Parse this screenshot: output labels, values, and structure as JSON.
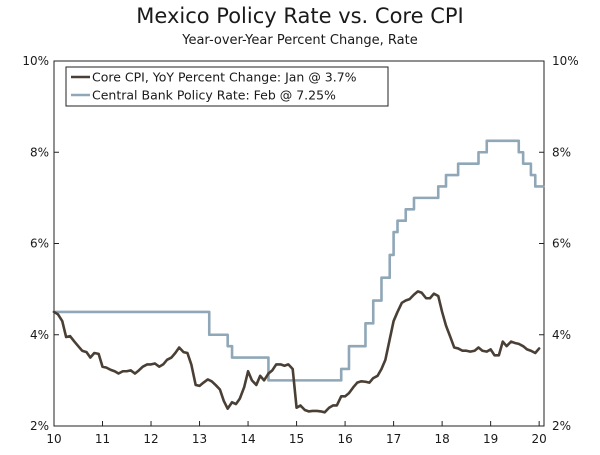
{
  "chart_data": {
    "type": "line",
    "title": "Mexico Policy Rate vs. Core CPI",
    "subtitle": "Year-over-Year Percent Change, Rate",
    "xlabel": "",
    "ylabel": "",
    "xlim": [
      2010.0,
      2020.1
    ],
    "ylim": [
      2,
      10
    ],
    "x_ticks": [
      {
        "value": 2010,
        "label": "10"
      },
      {
        "value": 2011,
        "label": "11"
      },
      {
        "value": 2012,
        "label": "12"
      },
      {
        "value": 2013,
        "label": "13"
      },
      {
        "value": 2014,
        "label": "14"
      },
      {
        "value": 2015,
        "label": "15"
      },
      {
        "value": 2016,
        "label": "16"
      },
      {
        "value": 2017,
        "label": "17"
      },
      {
        "value": 2018,
        "label": "18"
      },
      {
        "value": 2019,
        "label": "19"
      },
      {
        "value": 2020,
        "label": "20"
      }
    ],
    "y_ticks_left": [
      {
        "value": 2,
        "label": "2%"
      },
      {
        "value": 4,
        "label": "4%"
      },
      {
        "value": 6,
        "label": "6%"
      },
      {
        "value": 8,
        "label": "8%"
      },
      {
        "value": 10,
        "label": "10%"
      }
    ],
    "y_ticks_right": [
      {
        "value": 2,
        "label": "2%"
      },
      {
        "value": 4,
        "label": "4%"
      },
      {
        "value": 6,
        "label": "6%"
      },
      {
        "value": 8,
        "label": "8%"
      },
      {
        "value": 10,
        "label": "10%"
      }
    ],
    "grid": false,
    "legend_position": "top-left",
    "series": [
      {
        "name": "Core CPI, YoY Percent Change: Jan @ 3.7%",
        "color": "#4a3f35",
        "points": [
          [
            2010.0,
            4.5
          ],
          [
            2010.08,
            4.45
          ],
          [
            2010.17,
            4.3
          ],
          [
            2010.25,
            3.95
          ],
          [
            2010.33,
            3.97
          ],
          [
            2010.42,
            3.85
          ],
          [
            2010.5,
            3.75
          ],
          [
            2010.58,
            3.65
          ],
          [
            2010.67,
            3.62
          ],
          [
            2010.75,
            3.5
          ],
          [
            2010.83,
            3.6
          ],
          [
            2010.92,
            3.58
          ],
          [
            2011.0,
            3.3
          ],
          [
            2011.08,
            3.28
          ],
          [
            2011.17,
            3.23
          ],
          [
            2011.25,
            3.2
          ],
          [
            2011.33,
            3.15
          ],
          [
            2011.42,
            3.2
          ],
          [
            2011.5,
            3.2
          ],
          [
            2011.58,
            3.22
          ],
          [
            2011.67,
            3.15
          ],
          [
            2011.75,
            3.22
          ],
          [
            2011.83,
            3.3
          ],
          [
            2011.92,
            3.35
          ],
          [
            2012.0,
            3.35
          ],
          [
            2012.08,
            3.37
          ],
          [
            2012.17,
            3.3
          ],
          [
            2012.25,
            3.35
          ],
          [
            2012.33,
            3.45
          ],
          [
            2012.42,
            3.5
          ],
          [
            2012.5,
            3.6
          ],
          [
            2012.58,
            3.72
          ],
          [
            2012.67,
            3.62
          ],
          [
            2012.75,
            3.6
          ],
          [
            2012.83,
            3.35
          ],
          [
            2012.92,
            2.9
          ],
          [
            2013.0,
            2.88
          ],
          [
            2013.08,
            2.95
          ],
          [
            2013.17,
            3.02
          ],
          [
            2013.25,
            2.98
          ],
          [
            2013.33,
            2.9
          ],
          [
            2013.42,
            2.8
          ],
          [
            2013.5,
            2.55
          ],
          [
            2013.58,
            2.38
          ],
          [
            2013.67,
            2.52
          ],
          [
            2013.75,
            2.48
          ],
          [
            2013.83,
            2.6
          ],
          [
            2013.92,
            2.85
          ],
          [
            2014.0,
            3.2
          ],
          [
            2014.08,
            3.0
          ],
          [
            2014.17,
            2.9
          ],
          [
            2014.25,
            3.1
          ],
          [
            2014.33,
            3.0
          ],
          [
            2014.42,
            3.15
          ],
          [
            2014.5,
            3.22
          ],
          [
            2014.58,
            3.35
          ],
          [
            2014.67,
            3.35
          ],
          [
            2014.75,
            3.32
          ],
          [
            2014.83,
            3.35
          ],
          [
            2014.92,
            3.25
          ],
          [
            2015.0,
            2.4
          ],
          [
            2015.08,
            2.45
          ],
          [
            2015.17,
            2.35
          ],
          [
            2015.25,
            2.32
          ],
          [
            2015.33,
            2.33
          ],
          [
            2015.42,
            2.33
          ],
          [
            2015.5,
            2.32
          ],
          [
            2015.58,
            2.3
          ],
          [
            2015.67,
            2.4
          ],
          [
            2015.75,
            2.45
          ],
          [
            2015.83,
            2.45
          ],
          [
            2015.92,
            2.65
          ],
          [
            2016.0,
            2.65
          ],
          [
            2016.08,
            2.72
          ],
          [
            2016.17,
            2.85
          ],
          [
            2016.25,
            2.95
          ],
          [
            2016.33,
            2.98
          ],
          [
            2016.42,
            2.97
          ],
          [
            2016.5,
            2.95
          ],
          [
            2016.58,
            3.05
          ],
          [
            2016.67,
            3.1
          ],
          [
            2016.75,
            3.25
          ],
          [
            2016.83,
            3.45
          ],
          [
            2016.92,
            3.9
          ],
          [
            2017.0,
            4.3
          ],
          [
            2017.08,
            4.5
          ],
          [
            2017.17,
            4.7
          ],
          [
            2017.25,
            4.75
          ],
          [
            2017.33,
            4.78
          ],
          [
            2017.42,
            4.88
          ],
          [
            2017.5,
            4.95
          ],
          [
            2017.58,
            4.92
          ],
          [
            2017.67,
            4.8
          ],
          [
            2017.75,
            4.8
          ],
          [
            2017.83,
            4.9
          ],
          [
            2017.92,
            4.85
          ],
          [
            2018.0,
            4.5
          ],
          [
            2018.08,
            4.2
          ],
          [
            2018.17,
            3.95
          ],
          [
            2018.25,
            3.72
          ],
          [
            2018.33,
            3.7
          ],
          [
            2018.42,
            3.65
          ],
          [
            2018.5,
            3.65
          ],
          [
            2018.58,
            3.63
          ],
          [
            2018.67,
            3.65
          ],
          [
            2018.75,
            3.72
          ],
          [
            2018.83,
            3.65
          ],
          [
            2018.92,
            3.63
          ],
          [
            2019.0,
            3.68
          ],
          [
            2019.08,
            3.55
          ],
          [
            2019.17,
            3.55
          ],
          [
            2019.25,
            3.85
          ],
          [
            2019.33,
            3.75
          ],
          [
            2019.42,
            3.85
          ],
          [
            2019.5,
            3.82
          ],
          [
            2019.58,
            3.8
          ],
          [
            2019.67,
            3.75
          ],
          [
            2019.75,
            3.68
          ],
          [
            2019.83,
            3.65
          ],
          [
            2019.92,
            3.6
          ],
          [
            2020.0,
            3.7
          ]
        ]
      },
      {
        "name": "Central Bank Policy Rate: Feb @ 7.25%",
        "color": "#8fa7b7",
        "points": [
          [
            2010.0,
            4.5
          ],
          [
            2013.2,
            4.5
          ],
          [
            2013.2,
            4.0
          ],
          [
            2013.58,
            4.0
          ],
          [
            2013.58,
            3.75
          ],
          [
            2013.67,
            3.75
          ],
          [
            2013.67,
            3.5
          ],
          [
            2014.42,
            3.5
          ],
          [
            2014.42,
            3.0
          ],
          [
            2015.92,
            3.0
          ],
          [
            2015.92,
            3.25
          ],
          [
            2016.08,
            3.25
          ],
          [
            2016.08,
            3.75
          ],
          [
            2016.42,
            3.75
          ],
          [
            2016.42,
            4.25
          ],
          [
            2016.58,
            4.25
          ],
          [
            2016.58,
            4.75
          ],
          [
            2016.75,
            4.75
          ],
          [
            2016.75,
            5.25
          ],
          [
            2016.92,
            5.25
          ],
          [
            2016.92,
            5.75
          ],
          [
            2017.0,
            5.75
          ],
          [
            2017.0,
            6.25
          ],
          [
            2017.08,
            6.25
          ],
          [
            2017.08,
            6.5
          ],
          [
            2017.25,
            6.5
          ],
          [
            2017.25,
            6.75
          ],
          [
            2017.42,
            6.75
          ],
          [
            2017.42,
            7.0
          ],
          [
            2017.92,
            7.0
          ],
          [
            2017.92,
            7.25
          ],
          [
            2018.08,
            7.25
          ],
          [
            2018.08,
            7.5
          ],
          [
            2018.33,
            7.5
          ],
          [
            2018.33,
            7.75
          ],
          [
            2018.75,
            7.75
          ],
          [
            2018.75,
            8.0
          ],
          [
            2018.92,
            8.0
          ],
          [
            2018.92,
            8.25
          ],
          [
            2019.58,
            8.25
          ],
          [
            2019.58,
            8.0
          ],
          [
            2019.67,
            8.0
          ],
          [
            2019.67,
            7.75
          ],
          [
            2019.83,
            7.75
          ],
          [
            2019.83,
            7.5
          ],
          [
            2019.92,
            7.5
          ],
          [
            2019.92,
            7.25
          ],
          [
            2020.08,
            7.25
          ]
        ]
      }
    ]
  }
}
